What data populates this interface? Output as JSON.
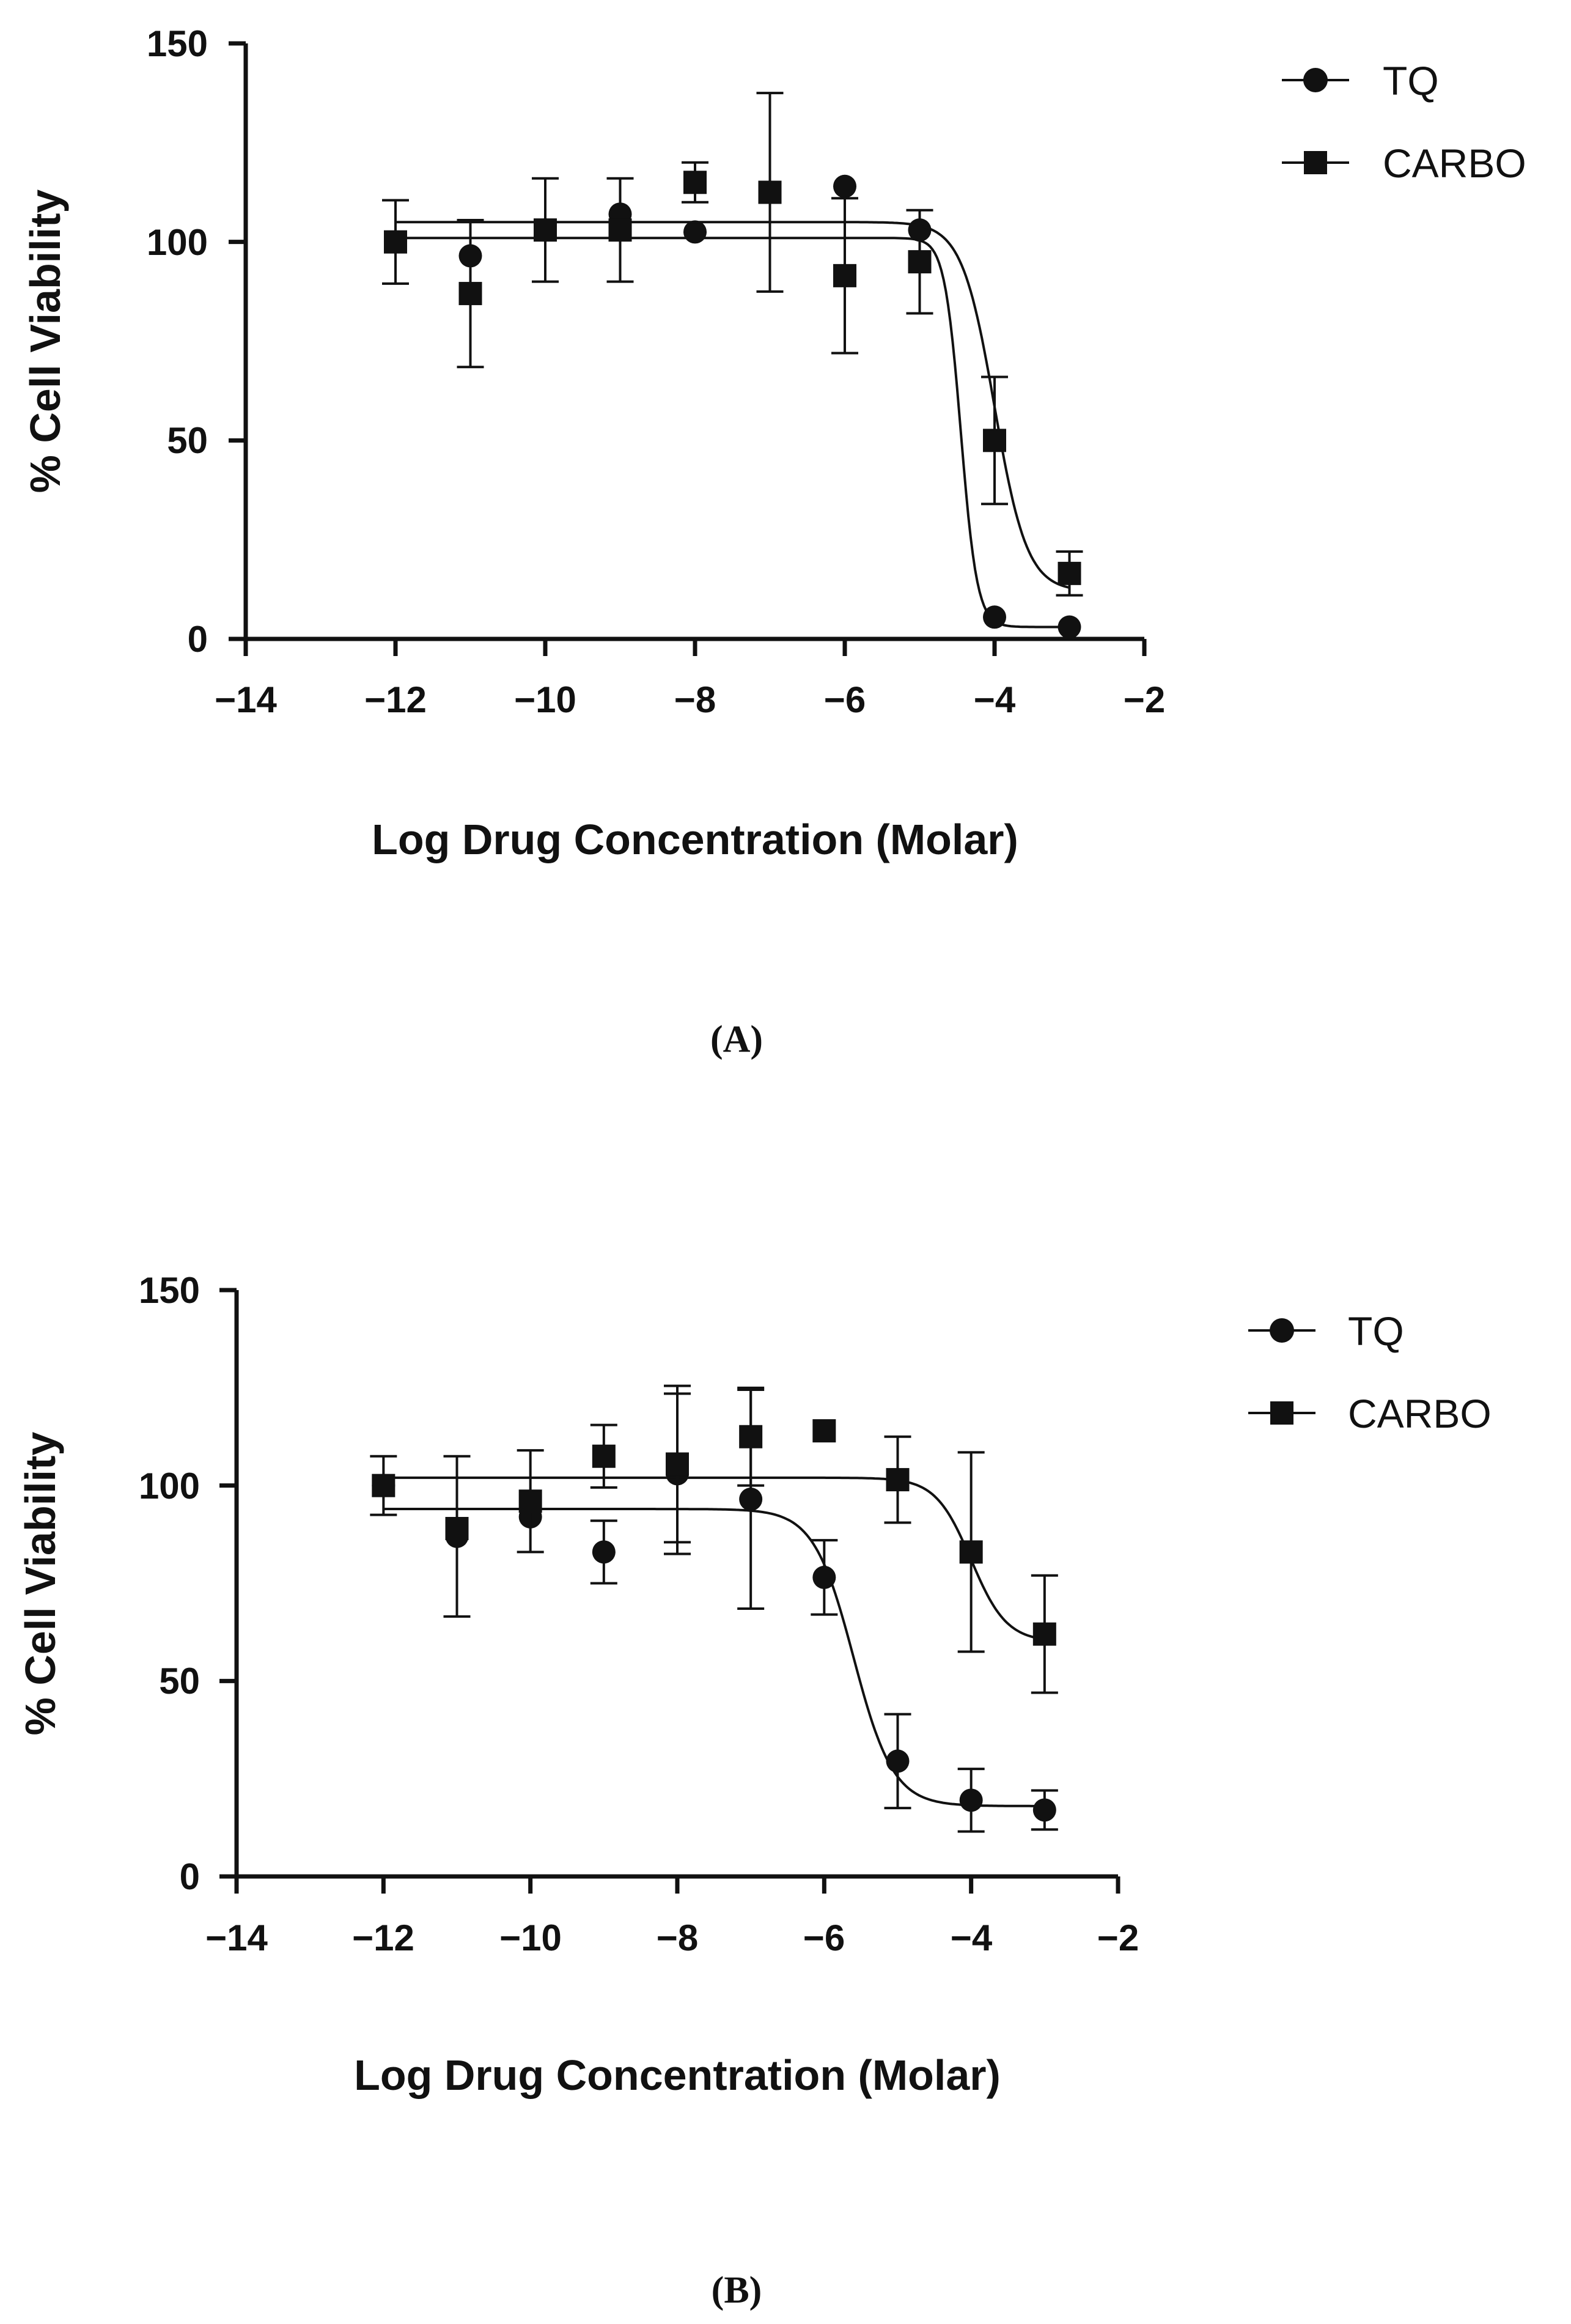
{
  "chart_data": [
    {
      "type": "scatter",
      "panel_label": "(A)",
      "xlabel": "Log Drug Concentration (Molar)",
      "ylabel": "% Cell Viability",
      "xlim": [
        -14,
        -2
      ],
      "ylim": [
        0,
        150
      ],
      "xticks": [
        -14,
        -12,
        -10,
        -8,
        -6,
        -4,
        -2
      ],
      "xtick_labels": [
        "−14",
        "−12",
        "−10",
        "−8",
        "−6",
        "−4",
        "−2"
      ],
      "yticks": [
        0,
        50,
        100,
        150
      ],
      "ytick_labels": [
        "0",
        "50",
        "100",
        "150"
      ],
      "legend": [
        "TQ",
        "CARBO"
      ],
      "legend_position": "top-right",
      "series": [
        {
          "name": "TQ",
          "marker": "circle",
          "x": [
            -12,
            -11,
            -10,
            -9,
            -8,
            -6,
            -5,
            -4,
            -3
          ],
          "y": [
            100,
            96.5,
            103,
            107,
            102.5,
            114,
            103,
            5.5,
            3
          ],
          "err": [
            0,
            0,
            0,
            0,
            0,
            0,
            0,
            0,
            0
          ],
          "fit": {
            "top": 101,
            "bottom": 3,
            "log_ic50": -4.45,
            "hill": -4.0
          }
        },
        {
          "name": "CARBO",
          "marker": "square",
          "x": [
            -12,
            -11,
            -10,
            -9,
            -8,
            -7,
            -6,
            -5,
            -4,
            -3
          ],
          "y": [
            100,
            87,
            103,
            103,
            115,
            112.5,
            91.5,
            95,
            50,
            16.5
          ],
          "err": [
            10.5,
            18.5,
            13,
            13,
            5,
            25,
            19.5,
            13,
            16,
            5.5
          ],
          "fit": {
            "top": 105,
            "bottom": 12,
            "log_ic50": -4.0,
            "hill": -2.0
          }
        }
      ]
    },
    {
      "type": "scatter",
      "panel_label": "(B)",
      "xlabel": "Log Drug Concentration (Molar)",
      "ylabel": "% Cell Viability",
      "xlim": [
        -14,
        -2
      ],
      "ylim": [
        0,
        150
      ],
      "xticks": [
        -14,
        -12,
        -10,
        -8,
        -6,
        -4,
        -2
      ],
      "xtick_labels": [
        "−14",
        "−12",
        "−10",
        "−8",
        "−6",
        "−4",
        "−2"
      ],
      "yticks": [
        0,
        50,
        100,
        150
      ],
      "ytick_labels": [
        "0",
        "50",
        "100",
        "150"
      ],
      "legend": [
        "TQ",
        "CARBO"
      ],
      "legend_position": "top-right",
      "series": [
        {
          "name": "TQ",
          "marker": "circle",
          "x": [
            -12,
            -11,
            -10,
            -9,
            -8,
            -7,
            -6,
            -5,
            -4,
            -3
          ],
          "y": [
            100,
            87,
            92,
            83,
            103,
            96.5,
            76.5,
            29.5,
            19.5,
            17
          ],
          "err": [
            0,
            20.5,
            0,
            8,
            20.5,
            28,
            9.5,
            12,
            8,
            5
          ],
          "fit": {
            "top": 94,
            "bottom": 18,
            "log_ic50": -5.6,
            "hill": -1.6
          }
        },
        {
          "name": "CARBO",
          "marker": "square",
          "x": [
            -12,
            -11,
            -10,
            -9,
            -8,
            -7,
            -6,
            -5,
            -4,
            -3
          ],
          "y": [
            100,
            89,
            96,
            107.5,
            105.5,
            112.5,
            114,
            101.5,
            83,
            62
          ],
          "err": [
            7.5,
            0,
            13,
            8,
            20,
            12.5,
            0,
            11,
            25.5,
            15
          ],
          "fit": {
            "top": 102,
            "bottom": 60,
            "log_ic50": -4.0,
            "hill": -1.8
          }
        }
      ]
    }
  ],
  "colors": {
    "ink": "#111111",
    "background": "#ffffff"
  }
}
